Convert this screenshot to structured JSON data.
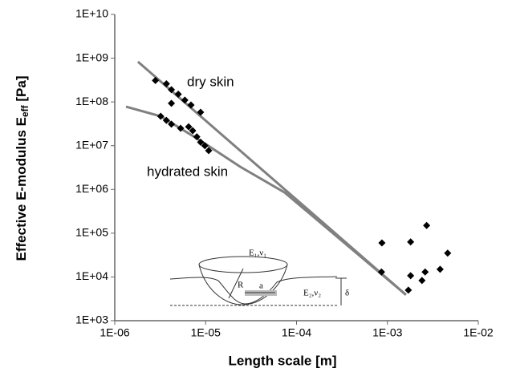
{
  "chart_data": {
    "type": "scatter",
    "x_label": "Length scale [m]",
    "y_label": {
      "main": "Effective E-modulus E",
      "sub": "eff",
      "unit": " [Pa]"
    },
    "log_x": true,
    "log_y": true,
    "xlim": [
      1e-06,
      0.01
    ],
    "ylim": [
      1000,
      10000000000
    ],
    "xticks": [
      {
        "value": 1e-06,
        "label": "1E-06"
      },
      {
        "value": 1e-05,
        "label": "1E-05"
      },
      {
        "value": 0.0001,
        "label": "1E-04"
      },
      {
        "value": 0.001,
        "label": "1E-03"
      },
      {
        "value": 0.01,
        "label": "1E-02"
      }
    ],
    "yticks": [
      {
        "value": 1000,
        "label": "1E+03"
      },
      {
        "value": 10000,
        "label": "1E+04"
      },
      {
        "value": 100000,
        "label": "1E+05"
      },
      {
        "value": 1000000,
        "label": "1E+06"
      },
      {
        "value": 10000000,
        "label": "1E+07"
      },
      {
        "value": 100000000,
        "label": "1E+08"
      },
      {
        "value": 1000000000,
        "label": "1E+09"
      },
      {
        "value": 10000000000,
        "label": "1E+10"
      }
    ],
    "grid": false,
    "series": [
      {
        "mode": "markers",
        "color": "#000000",
        "x": [
          2.8e-06,
          3.7e-06,
          4.2e-06,
          5e-06,
          4.2e-06,
          5.9e-06,
          6.9e-06,
          8.8e-06,
          3.2e-06,
          3.7e-06,
          4.2e-06,
          5.3e-06,
          6.5e-06,
          7.2e-06,
          8e-06,
          8.8e-06,
          9.8e-06,
          1.08e-05,
          0.00087,
          0.00086,
          0.0018,
          0.0018,
          0.0017,
          0.0027,
          0.0024,
          0.0026,
          0.0038,
          0.0046
        ],
        "values": [
          310000000,
          260000000,
          190000000,
          150000000,
          93000000,
          110000000,
          85000000,
          58000000,
          47000000,
          38000000,
          31000000,
          25000000,
          27000000,
          22000000,
          16000000,
          12000000,
          10000000,
          7700000,
          60000,
          13000,
          63000,
          10700,
          5000,
          150000,
          8300,
          13000,
          15000,
          35000
        ]
      },
      {
        "mode": "line",
        "name": "dry skin",
        "color": "#808080",
        "x": [
          1.8e-06,
          0.0016
        ],
        "values": [
          830000000,
          3900
        ]
      },
      {
        "mode": "line",
        "name": "hydrated skin",
        "color": "#808080",
        "x": [
          1.33e-06,
          3.2e-06,
          8.8e-06,
          2.4e-05,
          7.4e-05,
          0.0016
        ],
        "values": [
          78000000,
          47000000,
          13000000,
          3300000,
          850000,
          3900
        ]
      }
    ],
    "inset": {
      "e1": "E₁,ν₁",
      "r": "R",
      "a": "a",
      "e2": "E₂,ν₂",
      "delta": "δ"
    }
  }
}
